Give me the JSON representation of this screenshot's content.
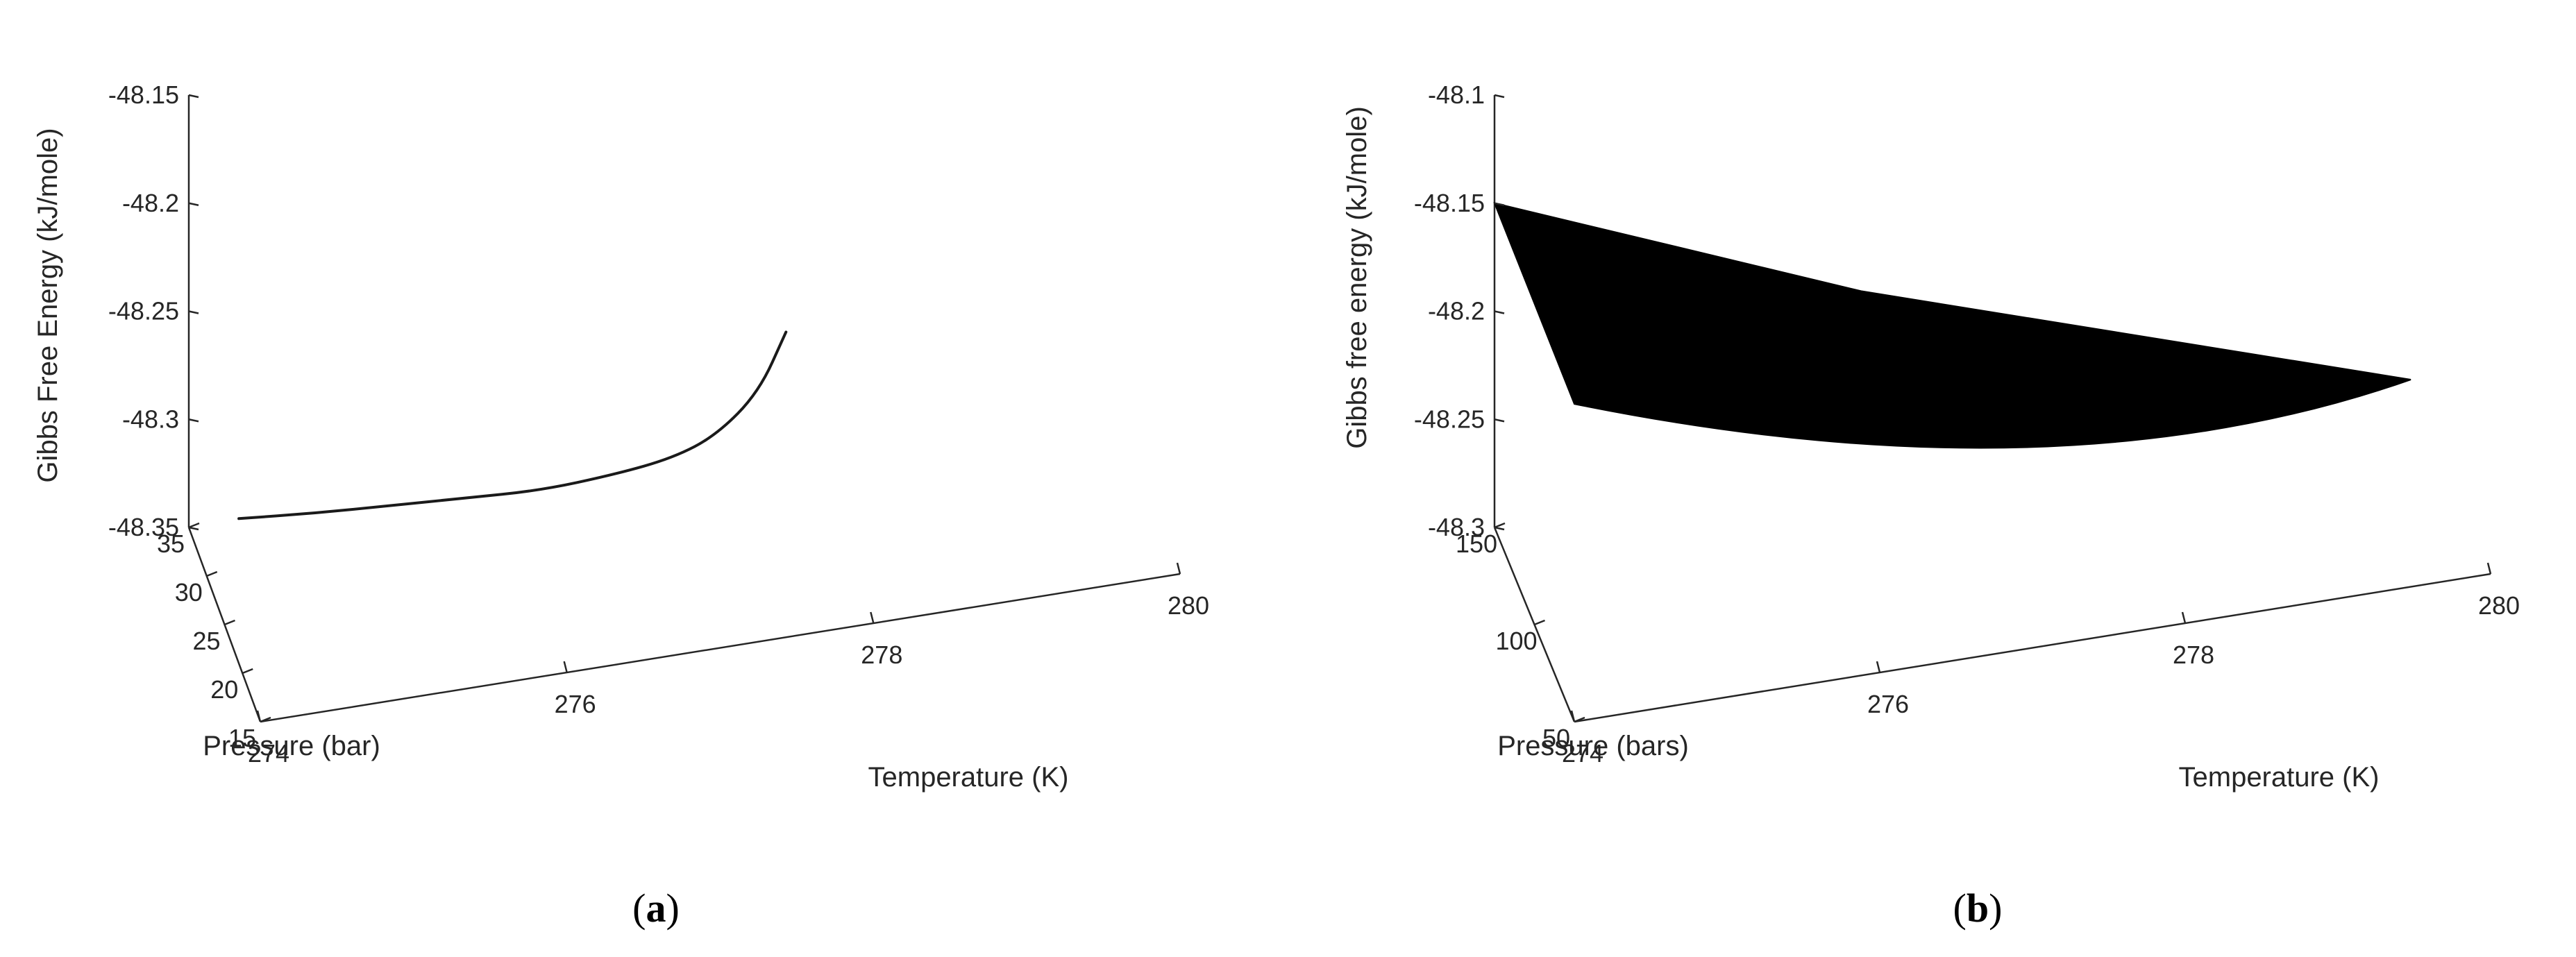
{
  "chart_data": [
    {
      "type": "line3d",
      "caption": "a",
      "zlabel": "Gibbs Free Energy (kJ/mole)",
      "xlabel": "Temperature (K)",
      "ylabel": "Pressure (bar)",
      "xlim": [
        274,
        280
      ],
      "ylim": [
        15,
        35
      ],
      "zlim": [
        -48.35,
        -48.15
      ],
      "xticks": [
        "274",
        "276",
        "278",
        "280"
      ],
      "yticks": [
        "15",
        "20",
        "25",
        "30",
        "35"
      ],
      "zticks": [
        "-48.35",
        "-48.3",
        "-48.25",
        "-48.2",
        "-48.15"
      ],
      "grid": false,
      "series": [
        {
          "points": [
            {
              "x": 274.0,
              "y": 21.0,
              "z": -48.283
            },
            {
              "x": 274.5,
              "y": 21.4,
              "z": -48.288
            },
            {
              "x": 275.0,
              "y": 21.8,
              "z": -48.292
            },
            {
              "x": 275.5,
              "y": 22.2,
              "z": -48.296
            },
            {
              "x": 276.0,
              "y": 22.6,
              "z": -48.3
            },
            {
              "x": 276.5,
              "y": 23.2,
              "z": -48.301
            },
            {
              "x": 276.9,
              "y": 23.9,
              "z": -48.301
            },
            {
              "x": 277.2,
              "y": 24.6,
              "z": -48.297
            },
            {
              "x": 277.5,
              "y": 25.6,
              "z": -48.285
            },
            {
              "x": 277.7,
              "y": 26.6,
              "z": -48.264
            }
          ]
        }
      ]
    },
    {
      "type": "surface3d",
      "caption": "b",
      "zlabel": "Gibbs free energy (kJ/mole)",
      "xlabel": "Temperature (K)",
      "ylabel": "Pressure (bars)",
      "xlim": [
        274,
        280
      ],
      "ylim": [
        50,
        150
      ],
      "zlim": [
        -48.3,
        -48.1
      ],
      "xticks": [
        "274",
        "276",
        "278",
        "280"
      ],
      "yticks": [
        "50",
        "100",
        "150"
      ],
      "zticks": [
        "-48.3",
        "-48.25",
        "-48.2",
        "-48.15",
        "-48.1"
      ],
      "grid": false,
      "color": "#000000",
      "surface_outline": [
        {
          "x": 274,
          "y": 150,
          "z": -48.15
        },
        {
          "x": 276.4,
          "y": 150,
          "z": -48.218
        },
        {
          "x": 280,
          "y": 150,
          "z": -48.3
        },
        {
          "x": 280,
          "y": 50,
          "z": -48.3
        },
        {
          "x": 274,
          "y": 50,
          "z": -48.153
        }
      ]
    }
  ]
}
